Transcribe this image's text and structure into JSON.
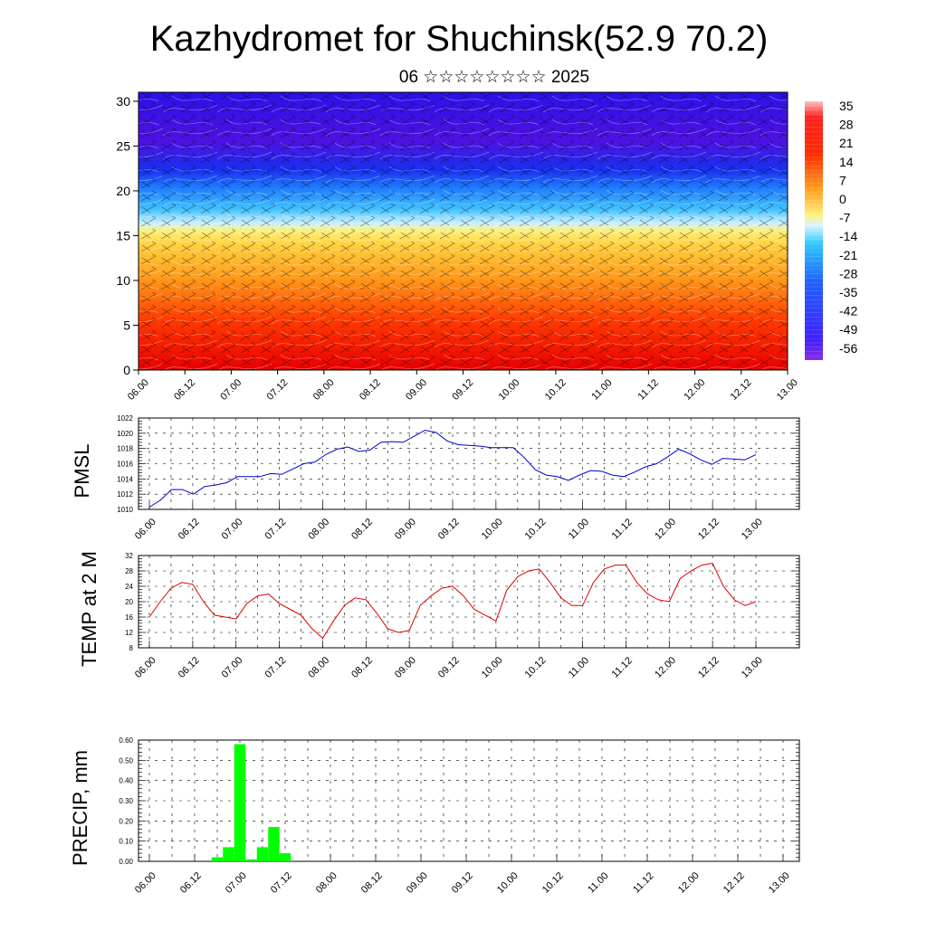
{
  "title": "Kazhydromet for Shuchinsk(52.9 70.2)",
  "subtitle": "06 ☆☆☆☆☆☆☆☆ 2025",
  "chart_data": [
    {
      "type": "heatmap",
      "description_key": "vertical cross-section",
      "x_labels": [
        "06.00",
        "06.12",
        "07.00",
        "07.12",
        "08.00",
        "08.12",
        "09.00",
        "09.12",
        "10.00",
        "10.12",
        "11.00",
        "11.12",
        "12.00",
        "12.12",
        "13.00"
      ],
      "y_ticks": [
        0,
        5,
        10,
        15,
        20,
        25,
        30
      ],
      "ylim": [
        0,
        31
      ],
      "colorbar_labels": [
        "35",
        "28",
        "21",
        "14",
        "7",
        "0",
        "-7",
        "-14",
        "-21",
        "-28",
        "-35",
        "-42",
        "-49",
        "-56"
      ],
      "colors": {
        "warm": "#ff0000",
        "mid": "#ffee66",
        "cold": "#1e90ff",
        "top": "#3a10e6"
      }
    },
    {
      "type": "line",
      "ylabel": "PMSL",
      "ylim": [
        1010,
        1022
      ],
      "y_ticks": [
        1010,
        1012,
        1014,
        1016,
        1018,
        1020,
        1022
      ],
      "x_labels": [
        "06.00",
        "06.12",
        "07.00",
        "07.12",
        "08.00",
        "08.12",
        "09.00",
        "09.12",
        "10.00",
        "10.12",
        "11.00",
        "11.12",
        "12.00",
        "12.12",
        "13.00"
      ],
      "color": "#0000cc",
      "values": [
        1010.3,
        1011.2,
        1012.6,
        1012.6,
        1012.0,
        1013.0,
        1013.2,
        1013.5,
        1014.3,
        1014.3,
        1014.3,
        1014.7,
        1014.6,
        1015.3,
        1016.0,
        1016.2,
        1017.2,
        1017.9,
        1018.2,
        1017.6,
        1017.8,
        1018.8,
        1018.9,
        1018.8,
        1019.6,
        1020.4,
        1020.1,
        1019.0,
        1018.5,
        1018.4,
        1018.3,
        1018.1,
        1018.1,
        1018.1,
        1016.8,
        1015.2,
        1014.5,
        1014.3,
        1013.8,
        1014.5,
        1015.1,
        1015.0,
        1014.5,
        1014.3,
        1014.9,
        1015.6,
        1016.0,
        1016.9,
        1017.9,
        1017.3,
        1016.5,
        1015.9,
        1016.7,
        1016.6,
        1016.5,
        1017.2
      ]
    },
    {
      "type": "line",
      "ylabel": "TEMP at 2 M",
      "ylim": [
        8,
        32
      ],
      "y_ticks": [
        8,
        12,
        16,
        20,
        24,
        28,
        32
      ],
      "x_labels": [
        "06.00",
        "06.12",
        "07.00",
        "07.12",
        "08.00",
        "08.12",
        "09.00",
        "09.12",
        "10.00",
        "10.12",
        "11.00",
        "11.12",
        "12.00",
        "12.12",
        "13.00"
      ],
      "color": "#dd0000",
      "values": [
        16,
        20,
        23.5,
        25,
        24.5,
        20,
        16.5,
        16,
        15.5,
        19.5,
        21.5,
        22,
        19.5,
        18,
        16.5,
        13,
        10.5,
        15,
        19,
        21,
        20.5,
        17,
        13,
        12,
        12.5,
        19,
        21.5,
        23.5,
        24,
        21.5,
        18,
        16.5,
        15,
        23,
        26.5,
        28,
        28.5,
        25,
        21,
        19,
        19,
        25,
        28.5,
        29.5,
        29.5,
        25,
        22,
        20.5,
        20,
        26,
        28,
        29.5,
        30,
        24,
        20.5,
        19,
        20
      ]
    },
    {
      "type": "bar",
      "ylabel": "PRECIP, mm",
      "ylim": [
        0,
        0.6
      ],
      "y_ticks": [
        "0.00",
        "0.10",
        "0.20",
        "0.30",
        "0.40",
        "0.50",
        "0.60"
      ],
      "x_labels": [
        "06.00",
        "06.12",
        "07.00",
        "07.12",
        "08.00",
        "08.12",
        "09.00",
        "09.12",
        "10.00",
        "10.12",
        "11.00",
        "11.12",
        "12.00",
        "12.12",
        "13.00"
      ],
      "color": "#00ff00",
      "values": [
        0,
        0,
        0,
        0,
        0,
        0,
        0.02,
        0.07,
        0.58,
        0.01,
        0.07,
        0.17,
        0.04,
        0,
        0,
        0,
        0,
        0,
        0,
        0,
        0,
        0,
        0,
        0,
        0,
        0,
        0,
        0,
        0,
        0,
        0,
        0,
        0,
        0,
        0,
        0,
        0,
        0,
        0,
        0,
        0,
        0,
        0,
        0,
        0,
        0,
        0,
        0,
        0,
        0,
        0,
        0,
        0,
        0,
        0,
        0,
        0
      ]
    }
  ]
}
